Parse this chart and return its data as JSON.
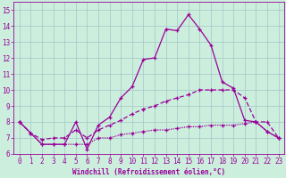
{
  "xlabel": "Windchill (Refroidissement éolien,°C)",
  "bg_color": "#cceedd",
  "grid_color": "#aacccc",
  "line_color": "#990099",
  "xlim": [
    -0.5,
    23.5
  ],
  "ylim": [
    6,
    15.5
  ],
  "xticks": [
    0,
    1,
    2,
    3,
    4,
    5,
    6,
    7,
    8,
    9,
    10,
    11,
    12,
    13,
    14,
    15,
    16,
    17,
    18,
    19,
    20,
    21,
    22,
    23
  ],
  "yticks": [
    6,
    7,
    8,
    9,
    10,
    11,
    12,
    13,
    14,
    15
  ],
  "series1_x": [
    0,
    1,
    2,
    3,
    4,
    5,
    6,
    7,
    8,
    9,
    10,
    11,
    12,
    13,
    14,
    15,
    16,
    17,
    18,
    19,
    20,
    21,
    22,
    23
  ],
  "series1_y": [
    8.0,
    7.3,
    6.6,
    6.6,
    6.6,
    8.0,
    6.3,
    7.8,
    8.3,
    9.5,
    10.2,
    11.9,
    12.0,
    13.8,
    13.7,
    14.7,
    13.8,
    12.8,
    10.5,
    10.1,
    8.1,
    8.0,
    7.4,
    7.0
  ],
  "series2_x": [
    0,
    1,
    2,
    3,
    4,
    5,
    6,
    7,
    8,
    9,
    10,
    11,
    12,
    13,
    14,
    15,
    16,
    17,
    18,
    19,
    20,
    21,
    22,
    23
  ],
  "series2_y": [
    8.0,
    7.3,
    6.9,
    7.0,
    7.0,
    7.5,
    7.0,
    7.5,
    7.8,
    8.1,
    8.5,
    8.8,
    9.0,
    9.3,
    9.5,
    9.7,
    10.0,
    10.0,
    10.0,
    10.0,
    9.5,
    8.0,
    8.0,
    7.0
  ],
  "series3_x": [
    0,
    1,
    2,
    3,
    4,
    5,
    6,
    7,
    8,
    9,
    10,
    11,
    12,
    13,
    14,
    15,
    16,
    17,
    18,
    19,
    20,
    21,
    22,
    23
  ],
  "series3_y": [
    8.0,
    7.3,
    6.6,
    6.6,
    6.6,
    6.6,
    6.6,
    7.0,
    7.0,
    7.2,
    7.3,
    7.4,
    7.5,
    7.5,
    7.6,
    7.7,
    7.7,
    7.8,
    7.8,
    7.8,
    7.9,
    8.0,
    7.4,
    7.0
  ],
  "tick_fontsize": 5.5,
  "xlabel_fontsize": 5.5
}
